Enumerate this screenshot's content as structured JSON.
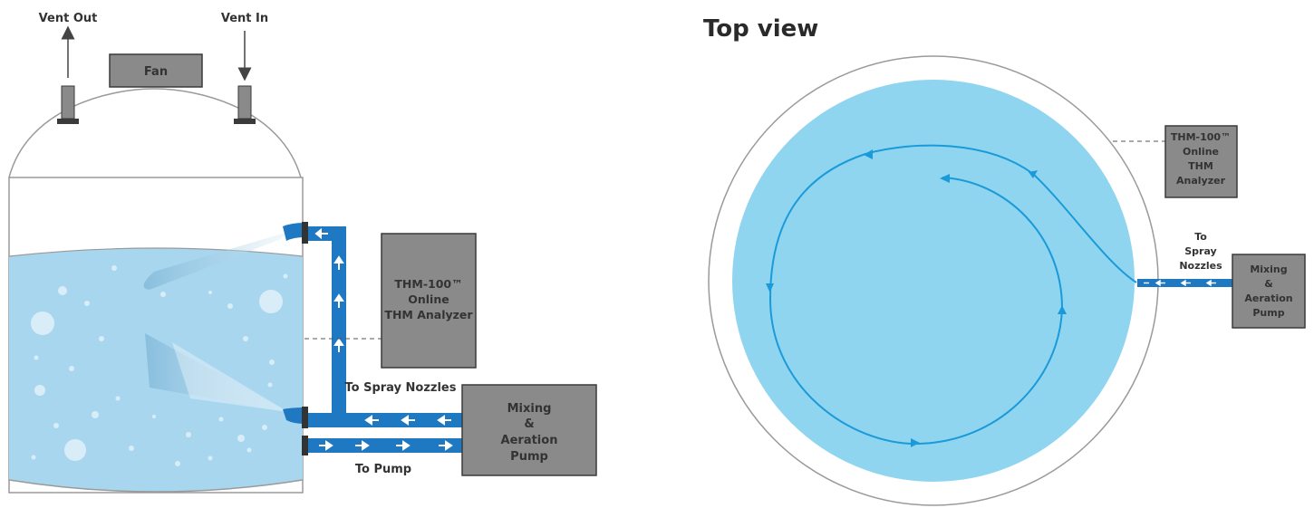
{
  "side_view": {
    "labels": {
      "vent_out": "Vent Out",
      "vent_in": "Vent In",
      "fan": "Fan",
      "to_spray_nozzles": "To Spray Nozzles",
      "to_pump": "To Pump"
    },
    "analyzer": [
      "THM-100™",
      "Online",
      "THM Analyzer"
    ],
    "pump": [
      "Mixing",
      "&",
      "Aeration",
      "Pump"
    ]
  },
  "top_view": {
    "title": "Top view",
    "analyzer": [
      "THM-100™",
      "Online",
      "THM",
      "Analyzer"
    ],
    "spray_label": [
      "To",
      "Spray",
      "Nozzles"
    ],
    "pump": [
      "Mixing",
      "&",
      "Aeration",
      "Pump"
    ]
  },
  "colors": {
    "water": "#a9d6ef",
    "water_top": "#90d5f0",
    "pipe": "#1f78c2",
    "box_fill": "#8a8a8a",
    "box_stroke": "#3a3a3a",
    "outline": "#9a9a9a",
    "flow_line": "#1a9ad8"
  }
}
